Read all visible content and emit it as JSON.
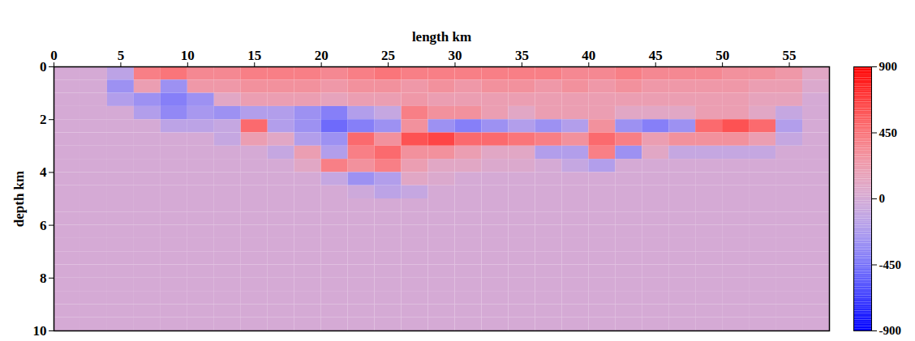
{
  "chart_data": {
    "type": "heatmap",
    "x_label": "length km",
    "y_label": "depth km",
    "xlim": [
      0,
      58
    ],
    "xticks": [
      0,
      5,
      10,
      15,
      20,
      25,
      30,
      35,
      40,
      45,
      50,
      55
    ],
    "ylim": [
      0,
      10
    ],
    "yticks": [
      0,
      2,
      4,
      6,
      8,
      10
    ],
    "x_edges": [
      0,
      2,
      4,
      6,
      8,
      10,
      12,
      14,
      16,
      18,
      20,
      22,
      24,
      26,
      28,
      30,
      32,
      34,
      36,
      38,
      40,
      42,
      44,
      46,
      48,
      50,
      52,
      54,
      56,
      58
    ],
    "y_edges": [
      0,
      0.5,
      1,
      1.5,
      2,
      2.5,
      3,
      3.5,
      4,
      4.5,
      5,
      5.5,
      6,
      6.5,
      7,
      7.5,
      8,
      8.5,
      9,
      9.5,
      10
    ],
    "cells": [
      [
        0,
        0,
        -150,
        400,
        450,
        350,
        350,
        400,
        400,
        400,
        350,
        400,
        450,
        400,
        400,
        400,
        400,
        400,
        400,
        350,
        350,
        400,
        350,
        350,
        350,
        300,
        300,
        250,
        100
      ],
      [
        0,
        0,
        -300,
        200,
        -300,
        250,
        250,
        300,
        300,
        300,
        250,
        300,
        300,
        250,
        300,
        250,
        300,
        300,
        250,
        300,
        250,
        300,
        250,
        250,
        250,
        250,
        200,
        200,
        50
      ],
      [
        0,
        0,
        -200,
        -300,
        -400,
        -300,
        100,
        200,
        200,
        200,
        150,
        200,
        200,
        250,
        200,
        200,
        200,
        200,
        200,
        200,
        200,
        200,
        200,
        200,
        200,
        200,
        150,
        150,
        0
      ],
      [
        0,
        0,
        0,
        -200,
        -350,
        -250,
        -300,
        -200,
        -200,
        -300,
        -400,
        -200,
        -100,
        400,
        300,
        300,
        200,
        100,
        200,
        200,
        200,
        100,
        100,
        100,
        200,
        200,
        100,
        -100,
        0
      ],
      [
        0,
        0,
        0,
        0,
        -150,
        -150,
        -100,
        500,
        -200,
        -300,
        -500,
        -400,
        -300,
        300,
        -300,
        -400,
        -300,
        -200,
        -300,
        -200,
        300,
        -300,
        -400,
        -300,
        500,
        600,
        500,
        -200,
        0
      ],
      [
        0,
        0,
        0,
        0,
        0,
        0,
        -100,
        200,
        100,
        -200,
        -300,
        500,
        300,
        600,
        650,
        500,
        500,
        450,
        400,
        300,
        500,
        400,
        200,
        300,
        300,
        300,
        200,
        -100,
        0
      ],
      [
        0,
        0,
        0,
        0,
        0,
        0,
        0,
        0,
        -100,
        200,
        -200,
        400,
        500,
        300,
        300,
        200,
        100,
        100,
        -200,
        -200,
        400,
        -300,
        100,
        -100,
        -100,
        -100,
        -100,
        0,
        0
      ],
      [
        0,
        0,
        0,
        0,
        0,
        0,
        0,
        0,
        0,
        100,
        400,
        300,
        400,
        200,
        100,
        100,
        50,
        50,
        0,
        -100,
        -200,
        0,
        0,
        0,
        0,
        0,
        0,
        0,
        0
      ],
      [
        0,
        0,
        0,
        0,
        0,
        0,
        0,
        0,
        0,
        0,
        -100,
        -300,
        -200,
        100,
        50,
        0,
        0,
        0,
        0,
        0,
        0,
        0,
        0,
        0,
        0,
        0,
        0,
        0,
        0
      ],
      [
        0,
        0,
        0,
        0,
        0,
        0,
        0,
        0,
        0,
        0,
        0,
        -50,
        -150,
        -100,
        0,
        0,
        0,
        0,
        0,
        0,
        0,
        0,
        0,
        0,
        0,
        0,
        0,
        0,
        0
      ],
      [
        0,
        0,
        0,
        0,
        0,
        0,
        0,
        0,
        0,
        0,
        0,
        0,
        0,
        0,
        0,
        0,
        0,
        0,
        0,
        0,
        0,
        0,
        0,
        0,
        0,
        0,
        0,
        0,
        0
      ],
      [
        0,
        0,
        0,
        0,
        0,
        0,
        0,
        0,
        0,
        0,
        0,
        0,
        0,
        0,
        0,
        0,
        0,
        0,
        0,
        0,
        0,
        0,
        0,
        0,
        0,
        0,
        0,
        0,
        0
      ],
      [
        0,
        0,
        0,
        0,
        0,
        0,
        0,
        0,
        0,
        0,
        0,
        0,
        0,
        0,
        0,
        0,
        0,
        0,
        0,
        0,
        0,
        0,
        0,
        0,
        0,
        0,
        0,
        0,
        0
      ],
      [
        0,
        0,
        0,
        0,
        0,
        0,
        0,
        0,
        0,
        0,
        0,
        0,
        0,
        0,
        0,
        0,
        0,
        0,
        0,
        0,
        0,
        0,
        0,
        0,
        0,
        0,
        0,
        0,
        0
      ],
      [
        0,
        0,
        0,
        0,
        0,
        0,
        0,
        0,
        0,
        0,
        0,
        0,
        0,
        0,
        0,
        0,
        0,
        0,
        0,
        0,
        0,
        0,
        0,
        0,
        0,
        0,
        0,
        0,
        0
      ],
      [
        0,
        0,
        0,
        0,
        0,
        0,
        0,
        0,
        0,
        0,
        0,
        0,
        0,
        0,
        0,
        0,
        0,
        0,
        0,
        0,
        0,
        0,
        0,
        0,
        0,
        0,
        0,
        0,
        0
      ],
      [
        0,
        0,
        0,
        0,
        0,
        0,
        0,
        0,
        0,
        0,
        0,
        0,
        0,
        0,
        0,
        0,
        0,
        0,
        0,
        0,
        0,
        0,
        0,
        0,
        0,
        0,
        0,
        0,
        0
      ],
      [
        0,
        0,
        0,
        0,
        0,
        0,
        0,
        0,
        0,
        0,
        0,
        0,
        0,
        0,
        0,
        0,
        0,
        0,
        0,
        0,
        0,
        0,
        0,
        0,
        0,
        0,
        0,
        0,
        0
      ],
      [
        0,
        0,
        0,
        0,
        0,
        0,
        0,
        0,
        0,
        0,
        0,
        0,
        0,
        0,
        0,
        0,
        0,
        0,
        0,
        0,
        0,
        0,
        0,
        0,
        0,
        0,
        0,
        0,
        0
      ],
      [
        0,
        0,
        0,
        0,
        0,
        0,
        0,
        0,
        0,
        0,
        0,
        0,
        0,
        0,
        0,
        0,
        0,
        0,
        0,
        0,
        0,
        0,
        0,
        0,
        0,
        0,
        0,
        0,
        0
      ]
    ],
    "colorbar": {
      "range": [
        -900,
        900
      ],
      "ticks": [
        -900,
        -450,
        0,
        450,
        900
      ]
    },
    "grid": false
  }
}
